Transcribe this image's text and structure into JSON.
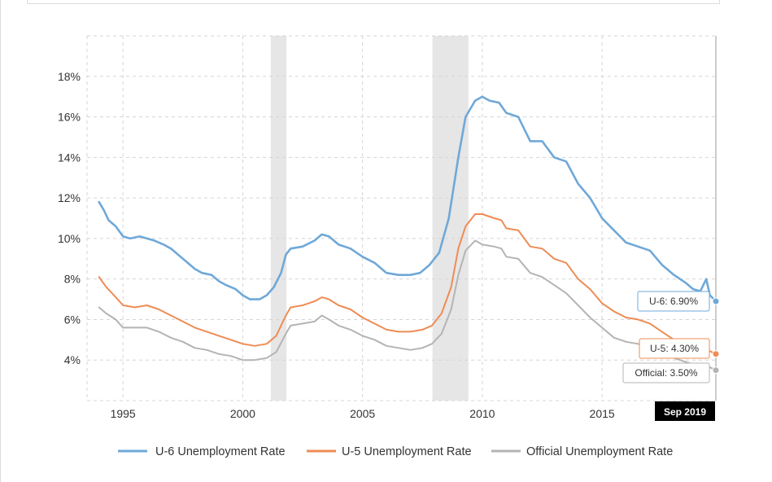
{
  "chart_data": {
    "type": "line",
    "title": "",
    "xlabel": "",
    "ylabel": "",
    "xlim": [
      1993.5,
      2019.75
    ],
    "ylim": [
      2,
      20
    ],
    "grid": true,
    "y_ticks": [
      {
        "value": 4,
        "label": "4%"
      },
      {
        "value": 6,
        "label": "6%"
      },
      {
        "value": 8,
        "label": "8%"
      },
      {
        "value": 10,
        "label": "10%"
      },
      {
        "value": 12,
        "label": "12%"
      },
      {
        "value": 14,
        "label": "14%"
      },
      {
        "value": 16,
        "label": "16%"
      },
      {
        "value": 18,
        "label": "18%"
      }
    ],
    "x_ticks": [
      {
        "value": 1995,
        "label": "1995"
      },
      {
        "value": 2000,
        "label": "2000"
      },
      {
        "value": 2005,
        "label": "2005"
      },
      {
        "value": 2010,
        "label": "2010"
      },
      {
        "value": 2015,
        "label": "2015"
      }
    ],
    "recessions": [
      {
        "start": 2001.17,
        "end": 2001.83
      },
      {
        "start": 2007.92,
        "end": 2009.42
      }
    ],
    "series": [
      {
        "name": "U-6 Unemployment Rate",
        "color": "#6fa8d8",
        "points": [
          [
            1994.0,
            11.8
          ],
          [
            1994.2,
            11.4
          ],
          [
            1994.4,
            10.9
          ],
          [
            1994.7,
            10.6
          ],
          [
            1995.0,
            10.1
          ],
          [
            1995.3,
            10.0
          ],
          [
            1995.7,
            10.1
          ],
          [
            1996.0,
            10.0
          ],
          [
            1996.3,
            9.9
          ],
          [
            1996.7,
            9.7
          ],
          [
            1997.0,
            9.5
          ],
          [
            1997.3,
            9.2
          ],
          [
            1997.7,
            8.8
          ],
          [
            1998.0,
            8.5
          ],
          [
            1998.3,
            8.3
          ],
          [
            1998.7,
            8.2
          ],
          [
            1999.0,
            7.9
          ],
          [
            1999.3,
            7.7
          ],
          [
            1999.7,
            7.5
          ],
          [
            2000.0,
            7.2
          ],
          [
            2000.3,
            7.0
          ],
          [
            2000.7,
            7.0
          ],
          [
            2001.0,
            7.2
          ],
          [
            2001.3,
            7.6
          ],
          [
            2001.6,
            8.3
          ],
          [
            2001.8,
            9.2
          ],
          [
            2002.0,
            9.5
          ],
          [
            2002.5,
            9.6
          ],
          [
            2003.0,
            9.9
          ],
          [
            2003.3,
            10.2
          ],
          [
            2003.6,
            10.1
          ],
          [
            2004.0,
            9.7
          ],
          [
            2004.5,
            9.5
          ],
          [
            2005.0,
            9.1
          ],
          [
            2005.5,
            8.8
          ],
          [
            2006.0,
            8.3
          ],
          [
            2006.5,
            8.2
          ],
          [
            2007.0,
            8.2
          ],
          [
            2007.4,
            8.3
          ],
          [
            2007.8,
            8.7
          ],
          [
            2008.2,
            9.3
          ],
          [
            2008.6,
            11.0
          ],
          [
            2009.0,
            14.0
          ],
          [
            2009.3,
            16.0
          ],
          [
            2009.7,
            16.8
          ],
          [
            2010.0,
            17.0
          ],
          [
            2010.3,
            16.8
          ],
          [
            2010.7,
            16.7
          ],
          [
            2011.0,
            16.2
          ],
          [
            2011.5,
            16.0
          ],
          [
            2012.0,
            14.8
          ],
          [
            2012.5,
            14.8
          ],
          [
            2013.0,
            14.0
          ],
          [
            2013.5,
            13.8
          ],
          [
            2014.0,
            12.7
          ],
          [
            2014.5,
            12.0
          ],
          [
            2015.0,
            11.0
          ],
          [
            2015.5,
            10.4
          ],
          [
            2016.0,
            9.8
          ],
          [
            2016.5,
            9.6
          ],
          [
            2017.0,
            9.4
          ],
          [
            2017.5,
            8.7
          ],
          [
            2018.0,
            8.2
          ],
          [
            2018.5,
            7.8
          ],
          [
            2018.8,
            7.5
          ],
          [
            2019.1,
            7.4
          ],
          [
            2019.35,
            8.0
          ],
          [
            2019.5,
            7.2
          ],
          [
            2019.75,
            6.9
          ]
        ]
      },
      {
        "name": "U-5 Unemployment Rate",
        "color": "#ee8c55",
        "points": [
          [
            1994.0,
            8.1
          ],
          [
            1994.3,
            7.6
          ],
          [
            1994.7,
            7.1
          ],
          [
            1995.0,
            6.7
          ],
          [
            1995.5,
            6.6
          ],
          [
            1996.0,
            6.7
          ],
          [
            1996.5,
            6.5
          ],
          [
            1997.0,
            6.2
          ],
          [
            1997.5,
            5.9
          ],
          [
            1998.0,
            5.6
          ],
          [
            1998.5,
            5.4
          ],
          [
            1999.0,
            5.2
          ],
          [
            1999.5,
            5.0
          ],
          [
            2000.0,
            4.8
          ],
          [
            2000.5,
            4.7
          ],
          [
            2001.0,
            4.8
          ],
          [
            2001.4,
            5.2
          ],
          [
            2001.8,
            6.2
          ],
          [
            2002.0,
            6.6
          ],
          [
            2002.5,
            6.7
          ],
          [
            2003.0,
            6.9
          ],
          [
            2003.3,
            7.1
          ],
          [
            2003.6,
            7.0
          ],
          [
            2004.0,
            6.7
          ],
          [
            2004.5,
            6.5
          ],
          [
            2005.0,
            6.1
          ],
          [
            2005.5,
            5.8
          ],
          [
            2006.0,
            5.5
          ],
          [
            2006.5,
            5.4
          ],
          [
            2007.0,
            5.4
          ],
          [
            2007.5,
            5.5
          ],
          [
            2007.9,
            5.7
          ],
          [
            2008.3,
            6.3
          ],
          [
            2008.7,
            7.6
          ],
          [
            2009.0,
            9.5
          ],
          [
            2009.3,
            10.6
          ],
          [
            2009.7,
            11.2
          ],
          [
            2010.0,
            11.2
          ],
          [
            2010.5,
            11.0
          ],
          [
            2010.8,
            10.9
          ],
          [
            2011.0,
            10.5
          ],
          [
            2011.5,
            10.4
          ],
          [
            2012.0,
            9.6
          ],
          [
            2012.5,
            9.5
          ],
          [
            2013.0,
            9.0
          ],
          [
            2013.5,
            8.8
          ],
          [
            2014.0,
            8.0
          ],
          [
            2014.5,
            7.5
          ],
          [
            2015.0,
            6.8
          ],
          [
            2015.5,
            6.4
          ],
          [
            2016.0,
            6.1
          ],
          [
            2016.5,
            6.0
          ],
          [
            2017.0,
            5.8
          ],
          [
            2017.5,
            5.4
          ],
          [
            2018.0,
            5.0
          ],
          [
            2018.5,
            4.8
          ],
          [
            2018.8,
            4.7
          ],
          [
            2019.1,
            4.6
          ],
          [
            2019.4,
            4.5
          ],
          [
            2019.75,
            4.3
          ]
        ]
      },
      {
        "name": "Official Unemployment Rate",
        "color": "#b4b4b4",
        "points": [
          [
            1994.0,
            6.6
          ],
          [
            1994.3,
            6.3
          ],
          [
            1994.7,
            6.0
          ],
          [
            1995.0,
            5.6
          ],
          [
            1995.5,
            5.6
          ],
          [
            1996.0,
            5.6
          ],
          [
            1996.5,
            5.4
          ],
          [
            1997.0,
            5.1
          ],
          [
            1997.5,
            4.9
          ],
          [
            1998.0,
            4.6
          ],
          [
            1998.5,
            4.5
          ],
          [
            1999.0,
            4.3
          ],
          [
            1999.5,
            4.2
          ],
          [
            2000.0,
            4.0
          ],
          [
            2000.5,
            4.0
          ],
          [
            2001.0,
            4.1
          ],
          [
            2001.4,
            4.4
          ],
          [
            2001.8,
            5.3
          ],
          [
            2002.0,
            5.7
          ],
          [
            2002.5,
            5.8
          ],
          [
            2003.0,
            5.9
          ],
          [
            2003.3,
            6.2
          ],
          [
            2003.6,
            6.0
          ],
          [
            2004.0,
            5.7
          ],
          [
            2004.5,
            5.5
          ],
          [
            2005.0,
            5.2
          ],
          [
            2005.5,
            5.0
          ],
          [
            2006.0,
            4.7
          ],
          [
            2006.5,
            4.6
          ],
          [
            2007.0,
            4.5
          ],
          [
            2007.5,
            4.6
          ],
          [
            2007.9,
            4.8
          ],
          [
            2008.3,
            5.3
          ],
          [
            2008.7,
            6.5
          ],
          [
            2009.0,
            8.2
          ],
          [
            2009.3,
            9.4
          ],
          [
            2009.7,
            9.9
          ],
          [
            2010.0,
            9.7
          ],
          [
            2010.5,
            9.6
          ],
          [
            2010.8,
            9.5
          ],
          [
            2011.0,
            9.1
          ],
          [
            2011.5,
            9.0
          ],
          [
            2012.0,
            8.3
          ],
          [
            2012.5,
            8.1
          ],
          [
            2013.0,
            7.7
          ],
          [
            2013.5,
            7.3
          ],
          [
            2014.0,
            6.7
          ],
          [
            2014.5,
            6.1
          ],
          [
            2015.0,
            5.6
          ],
          [
            2015.5,
            5.1
          ],
          [
            2016.0,
            4.9
          ],
          [
            2016.5,
            4.8
          ],
          [
            2017.0,
            4.6
          ],
          [
            2017.5,
            4.3
          ],
          [
            2018.0,
            4.1
          ],
          [
            2018.5,
            3.9
          ],
          [
            2018.8,
            3.8
          ],
          [
            2019.1,
            3.7
          ],
          [
            2019.4,
            3.7
          ],
          [
            2019.75,
            3.5
          ]
        ]
      }
    ],
    "tooltips": [
      {
        "series": "U-6 Unemployment Rate",
        "text": "U-6: 6.90%",
        "value": 6.9
      },
      {
        "series": "U-5 Unemployment Rate",
        "text": "U-5: 4.30%",
        "value": 4.3
      },
      {
        "series": "Official Unemployment Rate",
        "text": "Official: 3.50%",
        "value": 3.5
      }
    ],
    "crosshair": {
      "date_label": "Sep 2019"
    },
    "legend_placement": "bottom"
  }
}
